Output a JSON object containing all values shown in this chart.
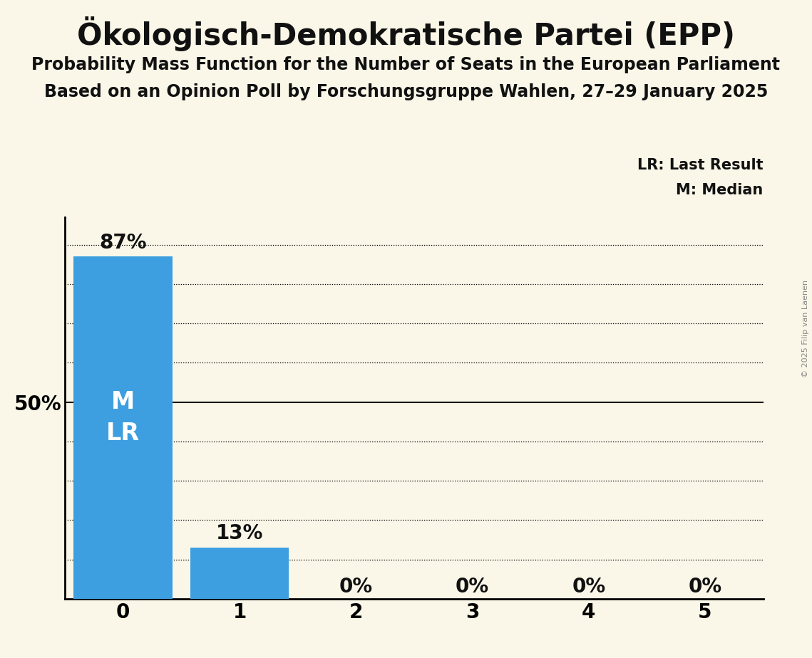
{
  "title": "Ökologisch-Demokratische Partei (EPP)",
  "subtitle1": "Probability Mass Function for the Number of Seats in the European Parliament",
  "subtitle2": "Based on an Opinion Poll by Forschungsgruppe Wahlen, 27–29 January 2025",
  "copyright": "© 2025 Filip van Laenen",
  "categories": [
    0,
    1,
    2,
    3,
    4,
    5
  ],
  "values": [
    0.87,
    0.13,
    0.0,
    0.0,
    0.0,
    0.0
  ],
  "bar_color": "#3D9FE0",
  "background_color": "#FAF7E8",
  "yticks": [
    0.0,
    0.1,
    0.2,
    0.3,
    0.4,
    0.5,
    0.6,
    0.7,
    0.8,
    0.9
  ],
  "ylabel_50_pct": "50%",
  "legend_lr": "LR: Last Result",
  "legend_m": "M: Median",
  "bar_labels": [
    "87%",
    "13%",
    "0%",
    "0%",
    "0%",
    "0%"
  ],
  "ylim": [
    0,
    0.97
  ],
  "title_fontsize": 30,
  "subtitle_fontsize": 17,
  "tick_fontsize": 20,
  "bar_label_fontsize": 20,
  "legend_fontsize": 15,
  "ml_fontsize": 24,
  "text_color": "#111111"
}
